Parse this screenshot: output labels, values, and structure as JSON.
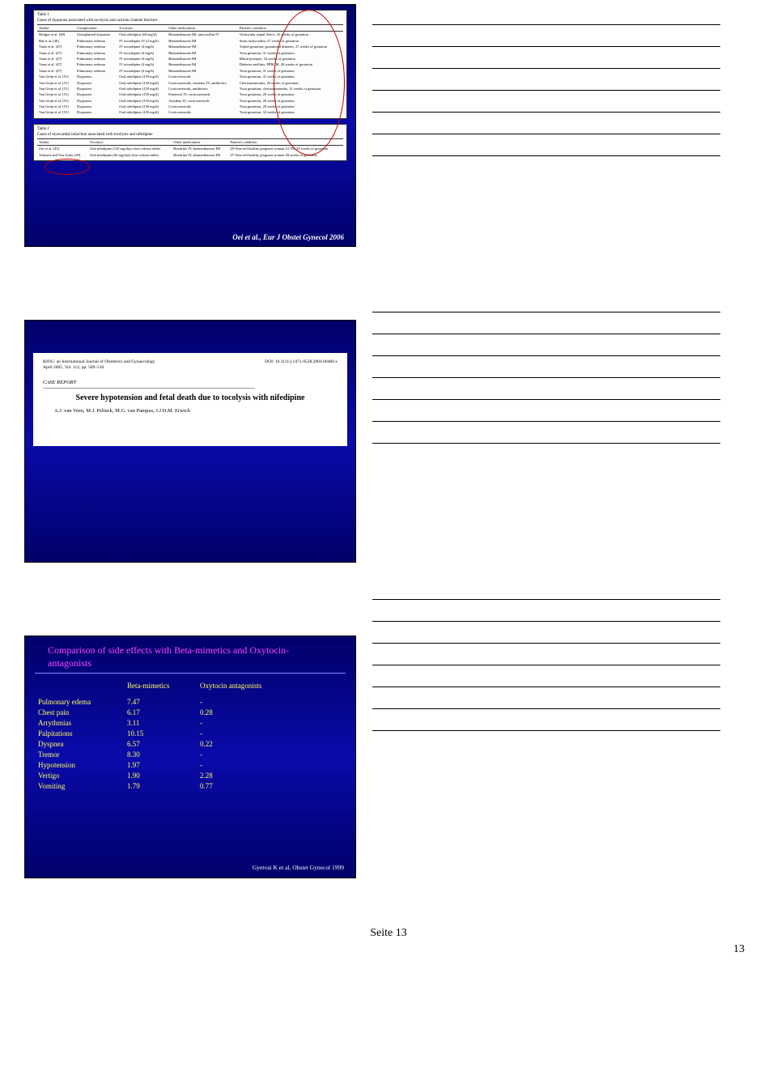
{
  "footer": {
    "label": "Seite 13",
    "page_num": "13"
  },
  "slide1": {
    "caption": "Oei et al., Eur J Obstet Gynecol 2006",
    "table1": {
      "title_a": "Table 1",
      "title_b": "Cases of dyspnoea associated with tocolysis and calcium channel blockers",
      "headers": [
        "Author",
        "Complication",
        "Tocolytic",
        "Other medications",
        "Patient's condition"
      ],
      "rows": [
        [
          "Hodges et al. [48]",
          "Unexplained dyspnoea",
          "Oral nifedipine (60 mg/d)",
          "Betamethasone IM, amoxicillin IV",
          "Ventricular septal defect, 32 weeks of gestation"
        ],
        [
          "Bal et al. [46]",
          "Pulmonary oedema",
          "IV nicardipine IV (2 mg/h)",
          "Betamethasone IM",
          "Sinus tachycardia, 27 weeks of gestation"
        ],
        [
          "Vaast et al. [47]",
          "Pulmonary oedema",
          "IV nicardipine (4 mg/h)",
          "Betamethasone IM",
          "Triplet gestation, gestational diabetes, 27 weeks of gestation"
        ],
        [
          "Vaast et al. [47]",
          "Pulmonary oedema",
          "IV nicardipine (4 mg/h)",
          "Betamethasone IM",
          "Twin gestation, 31 weeks of gestation"
        ],
        [
          "Vaast et al. [47]",
          "Pulmonary oedema",
          "IV nicardipine (4 mg/h)",
          "Betamethasone IM",
          "Mitral prolapse, 34 weeks of gestation"
        ],
        [
          "Vaast et al. [47]",
          "Pulmonary oedema",
          "IV nicardipine (4 mg/h)",
          "Betamethasone IM",
          "Diabetes mellitus, PPROM, 28 weeks of gestation"
        ],
        [
          "Vaast et al. [47]",
          "Pulmonary oedema",
          "IV nicardipine (4 mg/h)",
          "Betamethasone IM",
          "Twin gestation, 31 weeks of gestation"
        ],
        [
          "Van Geijn et al. [51]",
          "Dyspnoea",
          "Oral nifedipine (150 mg/d)",
          "Corticosteroids",
          "Twin gestation, 31 weeks of gestation"
        ],
        [
          "Van Geijn et al. [51]",
          "Dyspnoea",
          "Oral nifedipine (150 mg/d)",
          "Corticosteroids, ritodrine IV, antibiotics",
          "Chorioamnionitis, 26 weeks of gestation"
        ],
        [
          "Van Geijn et al. [51]",
          "Dyspnoea",
          "Oral nifedipine (150 mg/d)",
          "Corticosteroids, antibiotics",
          "Twin gestation, chorioamnionitis, 31 weeks of gestation"
        ],
        [
          "Van Geijn et al. [51]",
          "Dyspnoea",
          "Oral nifedipine (150 mg/d)",
          "Fenoterol IV, corticosteroids",
          "Twin gestation, 26 weeks of gestation"
        ],
        [
          "Van Geijn et al. [51]",
          "Dyspnoea",
          "Oral nifedipine (150 mg/d)",
          "Atosiban IV, corticosteroids",
          "Twin gestation, 28 weeks of gestation"
        ],
        [
          "Van Geijn et al. [51]",
          "Dyspnoea",
          "Oral nifedipine (130 mg/d)",
          "Corticosteroids",
          "Twin gestation, 28 weeks of gestation"
        ],
        [
          "Van Geijn et al. [51]",
          "Dyspnoea",
          "Oral nifedipine (100 mg/d)",
          "Corticosteroids",
          "Twin gestation, 32 weeks of gestation"
        ]
      ]
    },
    "table2": {
      "title_a": "Table 2",
      "title_b": "Cases of myocardial infarction associated with tocolysis and nifedipine",
      "headers": [
        "Author",
        "Tocolytic",
        "Other medications",
        "Patient's condition"
      ],
      "rows": [
        [
          "Oei et al. [45]",
          "Oral nifedipine (120 mg/day) slow release tablet",
          "Ritodrine IV, betamethasone IM",
          "29-Year-old healthy pregnant woman G1 P0, 29 weeks of gestation"
        ],
        [
          "Verhaert and Van Acker [49]",
          "Oral nifedipine (60 mg/day) slow release tablet",
          "Ritodrine IV, betamethasone IM",
          "27-Year-old healthy pregnant woman 28 weeks of gestation"
        ]
      ]
    }
  },
  "slide2": {
    "journal": "BJOG: an International Journal of Obstetrics and Gynaecology",
    "issue": "April 2005, Vol. 112, pp. 509–510",
    "doi": "DOI: 10.1111/j.1471-0528.2004.00480.x",
    "case": "CASE REPORT",
    "title": "Severe hypotension and fetal death due to tocolysis with nifedipine",
    "authors": "A.J. van Veen, M.J. Pelinck, M.G. van Pampus, J.J.H.M. Erwich"
  },
  "slide3": {
    "title": "Comparison of side effects with Beta-mimetics and Oxytocin-antagonists",
    "col_head_2": "Beta-mimetics",
    "col_head_3": "Oxytocin antagonists",
    "rows": [
      {
        "label": "Pulmonary edema",
        "v1": "7.47",
        "v2": "-"
      },
      {
        "label": "Chest pain",
        "v1": "6.17",
        "v2": "0.28"
      },
      {
        "label": "Arrythmias",
        "v1": "3.11",
        "v2": "-"
      },
      {
        "label": "Palpitations",
        "v1": "10.15",
        "v2": "-"
      },
      {
        "label": "Dyspnea",
        "v1": "6.57",
        "v2": "0.22"
      },
      {
        "label": "Tremor",
        "v1": "8.30",
        "v2": "-"
      },
      {
        "label": "Hypotension",
        "v1": "1.97",
        "v2": "-"
      },
      {
        "label": "Vertigo",
        "v1": "1.90",
        "v2": "2.28"
      },
      {
        "label": "Vomiting",
        "v1": "1.79",
        "v2": "0.77"
      }
    ],
    "cite": "Gyetvai K et al, Obstet Gynecol 1999"
  }
}
